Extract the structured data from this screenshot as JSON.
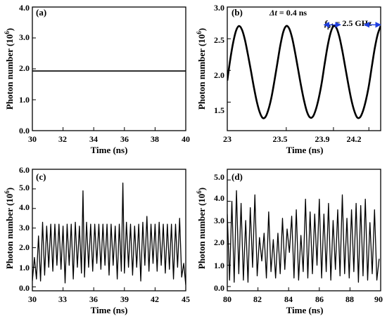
{
  "figure": {
    "panels": [
      {
        "label": "(a)",
        "xlabel": "Time (ns)",
        "ylabel": "Photon number (10",
        "ylabel_sup": "6",
        "ylabel_end": ")",
        "xticks": [
          "30",
          "32",
          "34",
          "36",
          "38",
          "40"
        ],
        "yticks": [
          "0.0",
          "1.0",
          "2.0",
          "3.0",
          "4.0"
        ]
      },
      {
        "label": "(b)",
        "xlabel": "Time (ns)",
        "ylabel": "Photon number (10",
        "ylabel_sup": "6",
        "ylabel_end": ")",
        "xticks": [
          "23",
          "23.5",
          "23.9",
          "24.2"
        ],
        "yticks": [
          "1.5",
          "2.0",
          "2.5",
          "3.0"
        ],
        "annot_dt_prefix": "Δt",
        "annot_dt_value": "= 0.4 ns",
        "annot_f_name": "f",
        "annot_f_sub": "p1",
        "annot_f_value": "= 2.5 GHz"
      },
      {
        "label": "(c)",
        "xlabel": "Time (ns)",
        "ylabel": "Photon number (10",
        "ylabel_sup": "6",
        "ylabel_end": ")",
        "xticks": [
          "30",
          "33",
          "36",
          "39",
          "42",
          "45"
        ],
        "yticks": [
          "0.0",
          "1.0",
          "2.0",
          "3.0",
          "4.0",
          "5.0",
          "6.0"
        ]
      },
      {
        "label": "(d)",
        "xlabel": "Time (ns)",
        "ylabel": "Photon number (10",
        "ylabel_sup": "6",
        "ylabel_end": ")",
        "xticks": [
          "80",
          "82",
          "84",
          "86",
          "88",
          "90"
        ],
        "yticks": [
          "0.0",
          "1.0",
          "2.0",
          "3.0",
          "4.0",
          "5.0"
        ]
      }
    ]
  },
  "chart_data": [
    {
      "type": "line",
      "xlim": [
        30,
        40
      ],
      "ylim": [
        0,
        4
      ],
      "xticks": [
        30,
        32,
        34,
        36,
        38,
        40
      ],
      "yticks": [
        0,
        1,
        2,
        3,
        4
      ],
      "series": [
        {
          "x": [
            30,
            40
          ],
          "y": [
            1.93,
            1.93
          ]
        }
      ]
    },
    {
      "type": "line",
      "xlim": [
        23,
        24.3
      ],
      "ylim": [
        1.05,
        3.0
      ],
      "xticks": [
        23,
        23.5,
        23.9,
        24.2
      ],
      "yticks": [
        1.5,
        2.0,
        2.5,
        3.0
      ],
      "series": [
        {
          "x": [
            23.0,
            23.025,
            23.05,
            23.075,
            23.1,
            23.125,
            23.15,
            23.175,
            23.2,
            23.225,
            23.25,
            23.275,
            23.3,
            23.325,
            23.35,
            23.375,
            23.4,
            23.425,
            23.45,
            23.475,
            23.5,
            23.525,
            23.55,
            23.575,
            23.6,
            23.625,
            23.65,
            23.675,
            23.7,
            23.725,
            23.75,
            23.775,
            23.8,
            23.825,
            23.85,
            23.875,
            23.9,
            23.925,
            23.95,
            23.975,
            24.0,
            24.025,
            24.05,
            24.075,
            24.1,
            24.125,
            24.15,
            24.175,
            24.2,
            24.225,
            24.25,
            24.275,
            24.3
          ],
          "y": [
            1.84,
            2.17,
            2.44,
            2.63,
            2.7,
            2.64,
            2.48,
            2.25,
            2.0,
            1.74,
            1.51,
            1.34,
            1.25,
            1.27,
            1.39,
            1.58,
            1.84,
            2.12,
            2.4,
            2.61,
            2.7,
            2.66,
            2.51,
            2.28,
            2.02,
            1.76,
            1.53,
            1.35,
            1.26,
            1.27,
            1.38,
            1.56,
            1.8,
            2.1,
            2.38,
            2.59,
            2.7,
            2.67,
            2.53,
            2.31,
            2.05,
            1.79,
            1.55,
            1.37,
            1.26,
            1.26,
            1.36,
            1.53,
            1.76,
            2.06,
            2.35,
            2.57,
            2.7
          ]
        }
      ],
      "arrows": [
        {
          "from": 23.82,
          "to": 23.96,
          "y": 2.72
        },
        {
          "from": 24.16,
          "to": 24.3,
          "y": 2.72
        }
      ]
    },
    {
      "type": "line",
      "xlim": [
        30,
        45
      ],
      "ylim": [
        -0.2,
        6
      ],
      "xticks": [
        30,
        33,
        36,
        39,
        42,
        45
      ],
      "yticks": [
        0,
        1,
        2,
        3,
        4,
        5,
        6
      ],
      "series": [
        {
          "x": [
            30.0,
            30.2,
            30.4,
            30.6,
            30.8,
            31.0,
            31.2,
            31.4,
            31.6,
            31.8,
            32.0,
            32.2,
            32.4,
            32.6,
            32.8,
            33.0,
            33.2,
            33.4,
            33.6,
            33.8,
            34.0,
            34.2,
            34.4,
            34.6,
            34.8,
            34.95,
            35.1,
            35.3,
            35.5,
            35.7,
            35.9,
            36.1,
            36.3,
            36.5,
            36.7,
            36.9,
            37.1,
            37.3,
            37.5,
            37.7,
            37.9,
            38.1,
            38.3,
            38.5,
            38.7,
            38.85,
            39.0,
            39.2,
            39.4,
            39.6,
            39.8,
            40.0,
            40.2,
            40.4,
            40.6,
            40.8,
            41.0,
            41.2,
            41.4,
            41.6,
            41.8,
            42.0,
            42.2,
            42.4,
            42.6,
            42.8,
            43.0,
            43.2,
            43.4,
            43.6,
            43.8,
            44.0,
            44.2,
            44.4,
            44.6,
            44.8,
            45.0
          ],
          "y": [
            0.3,
            1.5,
            0.4,
            2.6,
            0.3,
            3.3,
            0.6,
            3.1,
            1.0,
            3.2,
            0.8,
            3.2,
            1.1,
            3.2,
            0.9,
            3.1,
            0.2,
            3.2,
            1.1,
            3.2,
            0.4,
            3.3,
            1.0,
            3.1,
            0.7,
            4.9,
            0.5,
            3.3,
            1.0,
            3.2,
            0.8,
            3.2,
            1.2,
            3.2,
            0.9,
            3.2,
            1.1,
            3.2,
            0.6,
            3.2,
            1.1,
            3.1,
            0.4,
            3.2,
            0.8,
            5.3,
            0.7,
            3.3,
            1.0,
            3.2,
            0.6,
            3.1,
            1.0,
            3.2,
            0.3,
            3.3,
            1.1,
            3.6,
            0.8,
            3.2,
            1.2,
            3.2,
            0.8,
            3.3,
            1.1,
            3.2,
            0.7,
            3.2,
            0.9,
            3.2,
            0.4,
            3.2,
            1.0,
            3.5,
            0.5,
            1.2,
            0.1
          ]
        }
      ]
    },
    {
      "type": "line",
      "xlim": [
        80,
        90
      ],
      "ylim": [
        -0.2,
        5.5
      ],
      "xticks": [
        80,
        82,
        84,
        86,
        88,
        90
      ],
      "yticks": [
        0,
        1,
        2,
        3,
        4,
        5
      ],
      "series": [
        {
          "x": [
            80.0,
            80.15,
            80.3,
            80.45,
            80.6,
            80.75,
            80.9,
            81.05,
            81.2,
            81.35,
            81.5,
            81.65,
            81.8,
            81.95,
            82.1,
            82.25,
            82.4,
            82.55,
            82.7,
            82.85,
            83.0,
            83.15,
            83.3,
            83.45,
            83.6,
            83.75,
            83.9,
            84.05,
            84.2,
            84.35,
            84.5,
            84.65,
            84.8,
            84.95,
            85.1,
            85.25,
            85.4,
            85.55,
            85.7,
            85.85,
            86.0,
            86.15,
            86.3,
            86.45,
            86.6,
            86.75,
            86.9,
            87.05,
            87.2,
            87.35,
            87.5,
            87.65,
            87.8,
            87.95,
            88.1,
            88.25,
            88.4,
            88.55,
            88.7,
            88.85,
            89.0,
            89.15,
            89.3,
            89.45,
            89.6,
            89.75,
            89.9
          ],
          "y": [
            3.4,
            0.3,
            4.0,
            0.2,
            4.5,
            0.6,
            3.9,
            0.3,
            3.1,
            0.2,
            3.7,
            0.9,
            4.3,
            0.5,
            2.3,
            1.2,
            2.5,
            0.4,
            3.5,
            0.7,
            2.2,
            0.4,
            2.5,
            0.6,
            3.2,
            0.8,
            2.7,
            1.6,
            3.3,
            0.4,
            3.6,
            0.3,
            2.4,
            0.7,
            4.1,
            0.4,
            3.5,
            0.6,
            3.4,
            1.0,
            4.1,
            0.4,
            3.4,
            0.7,
            3.9,
            0.3,
            3.1,
            0.8,
            3.6,
            0.5,
            4.3,
            0.6,
            3.2,
            0.4,
            3.6,
            0.7,
            3.9,
            0.2,
            3.8,
            0.5,
            4.1,
            0.3,
            3.0,
            0.6,
            3.6,
            0.3,
            1.3
          ]
        }
      ]
    }
  ]
}
